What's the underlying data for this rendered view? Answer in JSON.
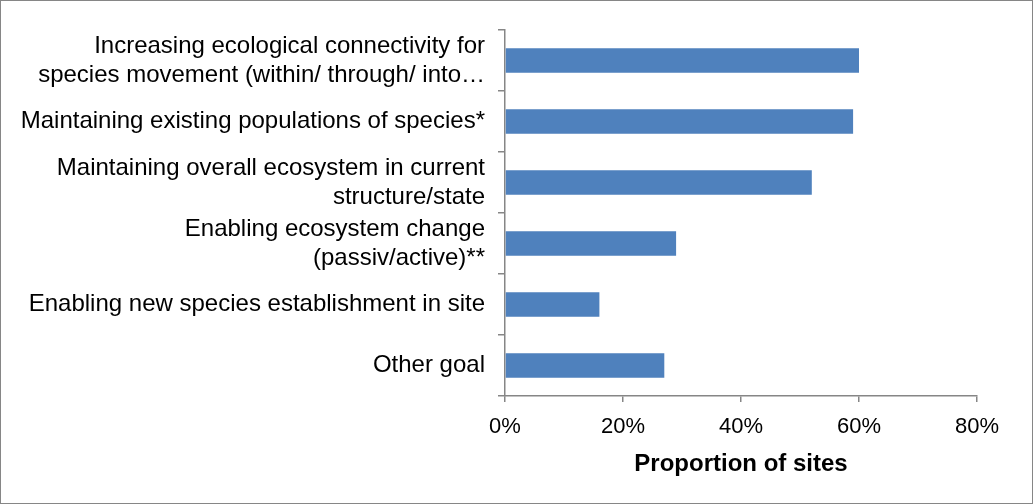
{
  "chart_data": {
    "type": "bar",
    "orientation": "horizontal",
    "categories": [
      "Increasing ecological connectivity for species movement (within/ through/ into…",
      "Maintaining existing populations of species*",
      "Maintaining overall ecosystem in current structure/state",
      "Enabling ecosystem change (passiv/active)**",
      "Enabling new species establishment in site",
      "Other goal"
    ],
    "values": [
      60,
      59,
      52,
      29,
      16,
      27
    ],
    "color": "#4f81bd",
    "xlabel": "Proportion of sites",
    "xlim": [
      0,
      80
    ],
    "xticks": [
      {
        "value": 0,
        "label": "0%"
      },
      {
        "value": 20,
        "label": "20%"
      },
      {
        "value": 40,
        "label": "40%"
      },
      {
        "value": 60,
        "label": "60%"
      },
      {
        "value": 80,
        "label": "80%"
      }
    ]
  }
}
